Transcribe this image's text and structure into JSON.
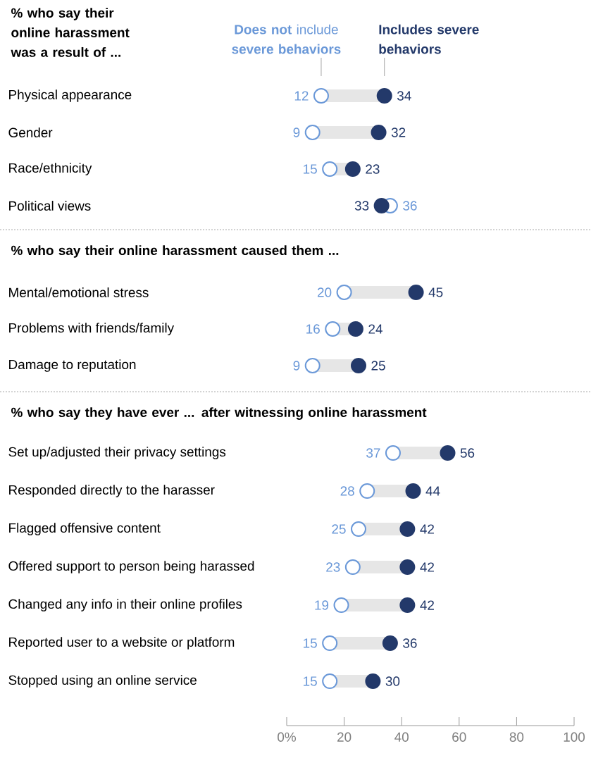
{
  "chart_data": [
    {
      "type": "scatter",
      "orientation": "horizontal",
      "title": "% who say their online harassment was a result of ...",
      "legend": "top",
      "marker": "circle",
      "data_labels": true,
      "tick_labels": "y",
      "categories": [
        "Physical appearance",
        "Gender",
        "Race/ethnicity",
        "Political views"
      ],
      "series": [
        {
          "name": "**Does not** include **severe behaviors**",
          "color": "#6a98d8",
          "values": [
            12,
            9,
            15,
            36
          ]
        },
        {
          "name": "Includes severe behaviors",
          "color": "#23396a",
          "values": [
            34,
            32,
            23,
            33
          ]
        }
      ]
    },
    {
      "type": "scatter",
      "orientation": "horizontal",
      "title": "% who say their online harassment caused them ...",
      "marker": "circle",
      "data_labels": true,
      "tick_labels": "y",
      "categories": [
        "Mental/emotional stress",
        "Problems with friends/family",
        "Damage to reputation"
      ],
      "series": [
        {
          "color": "#6a98d8",
          "values": [
            20,
            16,
            9
          ]
        },
        {
          "color": "#23396a",
          "values": [
            45,
            24,
            25
          ]
        }
      ]
    },
    {
      "type": "scatter",
      "orientation": "horizontal",
      "title": "% who say they have ever ... after witnessing online harassment",
      "marker": "circle",
      "data_labels": true,
      "xlim": [
        0,
        100
      ],
      "xticks": [
        {
          "value": 0,
          "label": "0%"
        },
        20,
        40,
        60,
        80,
        100
      ],
      "categories": [
        "Set up/adjusted their privacy settings",
        "Responded directly to the harasser",
        "Flagged offensive content",
        "Offered support to person being harassed",
        "Changed any info in their online profiles",
        "Reported user to a website or platform",
        "Stopped using an online service"
      ],
      "series": [
        {
          "color": "#6a98d8",
          "values": [
            37,
            28,
            25,
            23,
            19,
            15,
            15
          ]
        },
        {
          "color": "#23396a",
          "values": [
            56,
            44,
            42,
            42,
            42,
            36,
            30
          ]
        }
      ]
    }
  ]
}
